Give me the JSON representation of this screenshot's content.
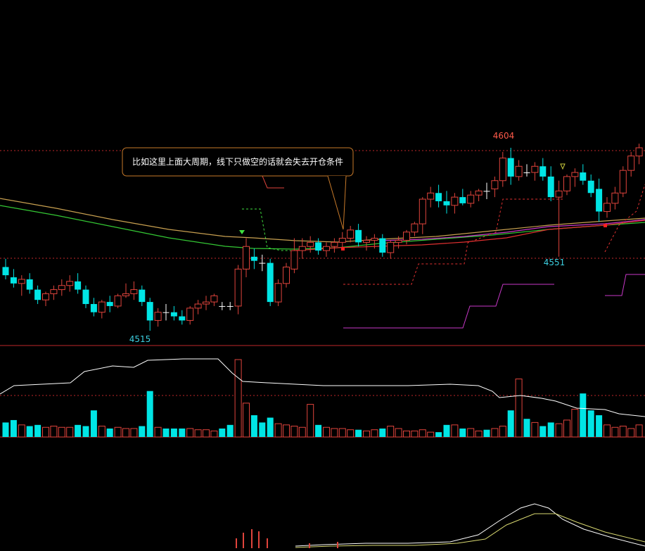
{
  "annotation": {
    "text": "比如这里上面大周期，线下只做空的话就会失去开仓条件"
  },
  "colors": {
    "background": "#000000",
    "up_candle": "#e0443c",
    "down_candle": "#00e5e5",
    "cross_candle": "#ffffff",
    "price_label_high": "#ff5a4a",
    "price_label_low": "#3ccfe0",
    "ma_slow": "#c8a050",
    "ma_mid": "#34c834",
    "ma_fast": "#e03030",
    "ma_purple": "#c838c8",
    "dashed_guide": "#e03030",
    "green_dashed": "#40e040",
    "volume_line": "#ffffff",
    "separator": "#c0282a",
    "annotation_border": "#c87a2a",
    "annotation_text": "#ffffff"
  },
  "chart_data": {
    "type": "candlestick",
    "price_panel": {
      "labels": {
        "high": "4604",
        "low_left": "4515",
        "low_mid": "4551"
      },
      "ohlc": [
        [
          4546,
          4550,
          4540,
          4542
        ],
        [
          4541,
          4545,
          4536,
          4538
        ],
        [
          4538,
          4542,
          4532,
          4540
        ],
        [
          4540,
          4543,
          4533,
          4535
        ],
        [
          4535,
          4537,
          4528,
          4530
        ],
        [
          4530,
          4534,
          4527,
          4533
        ],
        [
          4533,
          4537,
          4530,
          4535
        ],
        [
          4535,
          4540,
          4532,
          4537
        ],
        [
          4537,
          4542,
          4534,
          4539
        ],
        [
          4539,
          4543,
          4533,
          4535
        ],
        [
          4535,
          4537,
          4526,
          4528
        ],
        [
          4528,
          4531,
          4522,
          4524
        ],
        [
          4524,
          4530,
          4521,
          4529
        ],
        [
          4529,
          4532,
          4524,
          4527
        ],
        [
          4527,
          4533,
          4526,
          4532
        ],
        [
          4532,
          4538,
          4531,
          4533
        ],
        [
          4533,
          4539,
          4530,
          4535
        ],
        [
          4535,
          4537,
          4527,
          4529
        ],
        [
          4529,
          4531,
          4515,
          4520
        ],
        [
          4520,
          4526,
          4517,
          4524
        ],
        [
          4524,
          4528,
          4520,
          4524
        ],
        [
          4524,
          4527,
          4520,
          4522
        ],
        [
          4522,
          4525,
          4518,
          4520
        ],
        [
          4520,
          4527,
          4518,
          4526
        ],
        [
          4526,
          4530,
          4523,
          4528
        ],
        [
          4528,
          4532,
          4525,
          4529
        ],
        [
          4529,
          4533,
          4527,
          4532
        ],
        [
          4527,
          4529,
          4525,
          4527
        ],
        [
          4527,
          4529,
          4525,
          4527
        ],
        [
          4527,
          4547,
          4523,
          4545
        ],
        [
          4545,
          4560,
          4541,
          4556
        ],
        [
          4551,
          4555,
          4545,
          4549
        ],
        [
          4548,
          4552,
          4544,
          4548
        ],
        [
          4548,
          4550,
          4527,
          4529
        ],
        [
          4529,
          4540,
          4527,
          4538
        ],
        [
          4538,
          4548,
          4536,
          4546
        ],
        [
          4545,
          4560,
          4543,
          4554
        ],
        [
          4554,
          4560,
          4550,
          4556
        ],
        [
          4556,
          4561,
          4553,
          4558
        ],
        [
          4558,
          4560,
          4552,
          4554
        ],
        [
          4554,
          4558,
          4551,
          4556
        ],
        [
          4556,
          4560,
          4553,
          4558
        ],
        [
          4558,
          4563,
          4555,
          4560
        ],
        [
          4560,
          4566,
          4558,
          4564
        ],
        [
          4564,
          4567,
          4556,
          4558
        ],
        [
          4558,
          4561,
          4554,
          4559
        ],
        [
          4559,
          4562,
          4555,
          4560
        ],
        [
          4560,
          4562,
          4551,
          4553
        ],
        [
          4553,
          4559,
          4550,
          4558
        ],
        [
          4558,
          4561,
          4555,
          4559
        ],
        [
          4559,
          4564,
          4557,
          4563
        ],
        [
          4563,
          4568,
          4561,
          4567
        ],
        [
          4567,
          4580,
          4562,
          4579
        ],
        [
          4579,
          4585,
          4575,
          4582
        ],
        [
          4582,
          4586,
          4575,
          4578
        ],
        [
          4578,
          4583,
          4572,
          4576
        ],
        [
          4576,
          4582,
          4572,
          4580
        ],
        [
          4580,
          4584,
          4576,
          4577
        ],
        [
          4577,
          4583,
          4575,
          4581
        ],
        [
          4581,
          4584,
          4578,
          4583
        ],
        [
          4583,
          4587,
          4579,
          4583
        ],
        [
          4584,
          4590,
          4580,
          4588
        ],
        [
          4588,
          4602,
          4585,
          4599
        ],
        [
          4599,
          4604,
          4586,
          4590
        ],
        [
          4590,
          4598,
          4588,
          4595
        ],
        [
          4592,
          4596,
          4590,
          4592
        ],
        [
          4592,
          4597,
          4588,
          4595
        ],
        [
          4595,
          4599,
          4588,
          4590
        ],
        [
          4590,
          4595,
          4578,
          4580
        ],
        [
          4580,
          4588,
          4551,
          4583
        ],
        [
          4583,
          4591,
          4581,
          4590
        ],
        [
          4590,
          4594,
          4585,
          4592
        ],
        [
          4592,
          4596,
          4586,
          4588
        ],
        [
          4588,
          4591,
          4580,
          4582
        ],
        [
          4584,
          4589,
          4568,
          4573
        ],
        [
          4573,
          4580,
          4570,
          4577
        ],
        [
          4577,
          4585,
          4574,
          4582
        ],
        [
          4582,
          4595,
          4580,
          4593
        ],
        [
          4593,
          4602,
          4590,
          4600
        ],
        [
          4600,
          4606,
          4596,
          4604
        ]
      ],
      "overlay_series": [
        {
          "name": "",
          "type": "line",
          "values": [
            4579,
            4576,
            4574,
            4572,
            4570,
            4568,
            4566,
            4564,
            4562,
            4560,
            4558,
            4557,
            4556,
            4556,
            4557,
            4559,
            4561,
            4563,
            4565,
            4567,
            4569,
            4570
          ]
        },
        {
          "name": "",
          "type": "line",
          "values": [
            4577,
            4574,
            4572,
            4570,
            4568,
            4566,
            4564,
            4562,
            4560,
            4558,
            4557,
            4556,
            4555,
            4555,
            4556,
            4558,
            4560,
            4562,
            4564,
            4566,
            4568,
            4569
          ]
        },
        {
          "name": "",
          "type": "line",
          "values": [
            4558,
            4558,
            4558,
            4559,
            4560,
            4562,
            4563,
            4565,
            4566,
            4568,
            4570,
            4571,
            4572,
            4573
          ]
        },
        {
          "name": "",
          "type": "line",
          "values": [
            4560,
            4561,
            4562,
            4563,
            4565,
            4566,
            4568,
            4569,
            4571,
            4572,
            4573
          ]
        }
      ]
    },
    "volume_panel": {
      "values": [
        12,
        14,
        10,
        9,
        10,
        8,
        9,
        8,
        8,
        10,
        9,
        22,
        9,
        7,
        8,
        7,
        7,
        9,
        38,
        8,
        7,
        7,
        7,
        7,
        6,
        6,
        5,
        7,
        10,
        64,
        28,
        18,
        12,
        16,
        11,
        10,
        9,
        8,
        27,
        10,
        8,
        7,
        7,
        6,
        6,
        5,
        6,
        7,
        9,
        7,
        5,
        5,
        6,
        4,
        4,
        10,
        10,
        7,
        7,
        5,
        6,
        7,
        9,
        22,
        48,
        15,
        12,
        9,
        12,
        11,
        14,
        23,
        36,
        22,
        18,
        10,
        8,
        9,
        7,
        10
      ]
    }
  }
}
